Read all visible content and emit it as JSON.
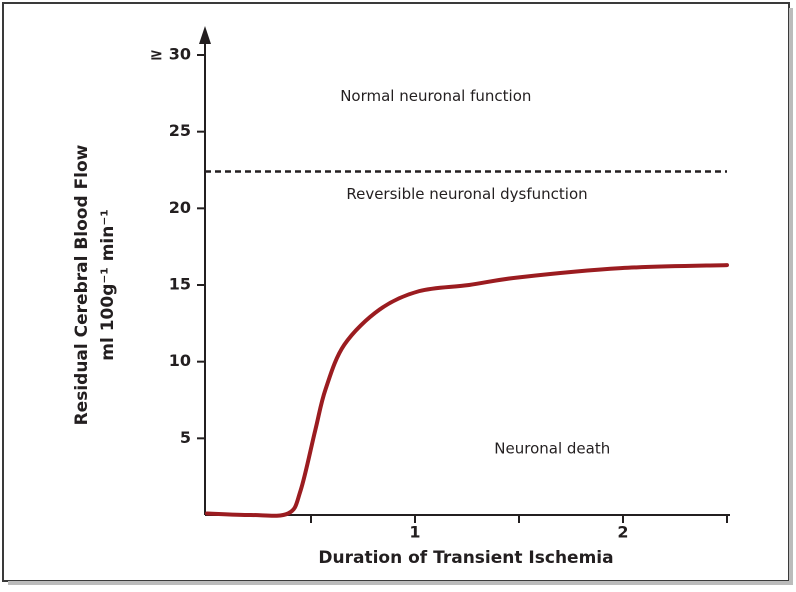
{
  "chart_data": {
    "type": "line",
    "xlabel": "Duration of Transient Ischemia",
    "ylabel": [
      "Residual Cerebral Blood Flow",
      "ml 100g⁻¹ min⁻¹"
    ],
    "xlim": [
      0,
      2.5
    ],
    "ylim": [
      0,
      30
    ],
    "xticks": [
      1,
      2
    ],
    "xminor_ticks": [
      0.5,
      1.5,
      2.5
    ],
    "yticks": [
      5,
      10,
      15,
      20,
      25,
      {
        "value": 30,
        "label": "≥ 30"
      }
    ],
    "threshold": 22.4,
    "annotations": [
      {
        "text": "Normal neuronal function",
        "x": 1.1,
        "y": 27.3
      },
      {
        "text": "Reversible neuronal dysfunction",
        "x": 1.25,
        "y": 20.9
      },
      {
        "text": "Neuronal death",
        "x": 1.66,
        "y": 4.3
      }
    ],
    "series": [
      {
        "color": "#9b1c20",
        "x": [
          0,
          0.21,
          0.39,
          0.45,
          0.52,
          0.57,
          0.66,
          0.83,
          1.02,
          1.26,
          1.5,
          1.99,
          2.5
        ],
        "values": [
          0.1,
          0,
          0.1,
          1.6,
          5.5,
          8.2,
          11.1,
          13.4,
          14.6,
          15.0,
          15.5,
          16.1,
          16.3
        ]
      }
    ]
  }
}
